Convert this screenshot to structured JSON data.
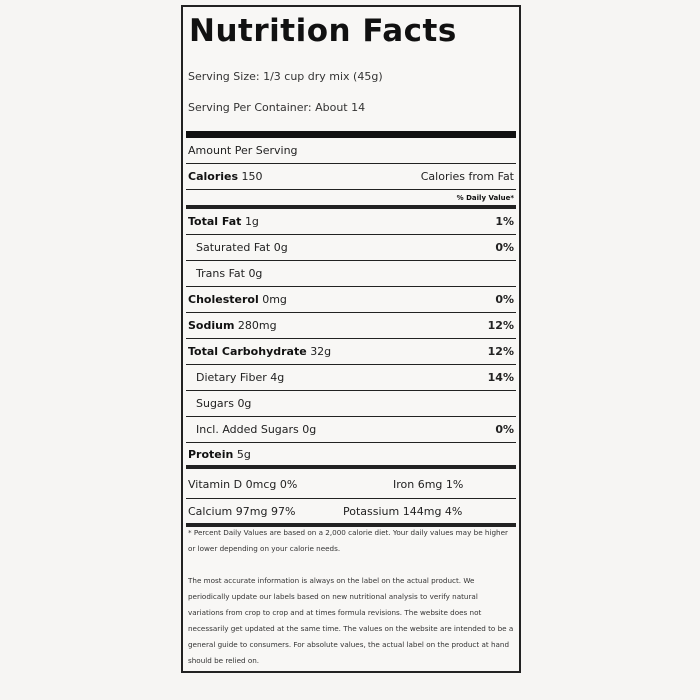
{
  "title": "Nutrition Facts",
  "serving_size": "Serving Size: 1/3 cup dry mix (45g)",
  "servings_per_container": "Serving Per Container: About 14",
  "amount_per_serving": "Amount Per Serving",
  "calories": {
    "label": "Calories",
    "value": "150",
    "from_fat": "Calories from Fat"
  },
  "daily_value_header": "% Daily Value*",
  "nutrients": [
    {
      "label": "Total Fat",
      "amount": "1g",
      "dv": "1%"
    },
    {
      "label": "Saturated Fat",
      "amount": "0g",
      "dv": "0%"
    },
    {
      "label": "Trans Fat",
      "amount": "0g",
      "dv": ""
    },
    {
      "label": "Cholesterol",
      "amount": "0mg",
      "dv": "0%"
    },
    {
      "label": "Sodium",
      "amount": "280mg",
      "dv": "12%"
    },
    {
      "label": "Total Carbohydrate",
      "amount": "32g",
      "dv": "12%"
    },
    {
      "label": "Dietary Fiber",
      "amount": "4g",
      "dv": "14%"
    },
    {
      "label": "Sugars",
      "amount": "0g",
      "dv": ""
    },
    {
      "label": "Incl. Added Sugars",
      "amount": "0g",
      "dv": "0%"
    },
    {
      "label": "Protein",
      "amount": "5g",
      "dv": ""
    }
  ],
  "vitamins": [
    {
      "left": "Vitamin D 0mcg 0%",
      "right": "Iron 6mg 1%"
    },
    {
      "left": "Calcium 97mg 97%",
      "right": "Potassium 144mg 4%"
    }
  ],
  "footnote": "* Percent Daily Values are based on a 2,000 calorie diet. Your daily values may be higher or lower depending on your calorie needs.",
  "disclaimer": "The most accurate information is always on the label on the actual product. We periodically update our labels based on new nutritional analysis to verify natural variations from crop to crop and at times formula revisions. The website does not necessarily get updated at the same time. The values on the website are intended to be a general guide to consumers. For absolute values, the actual label on the product at hand should be relied on."
}
